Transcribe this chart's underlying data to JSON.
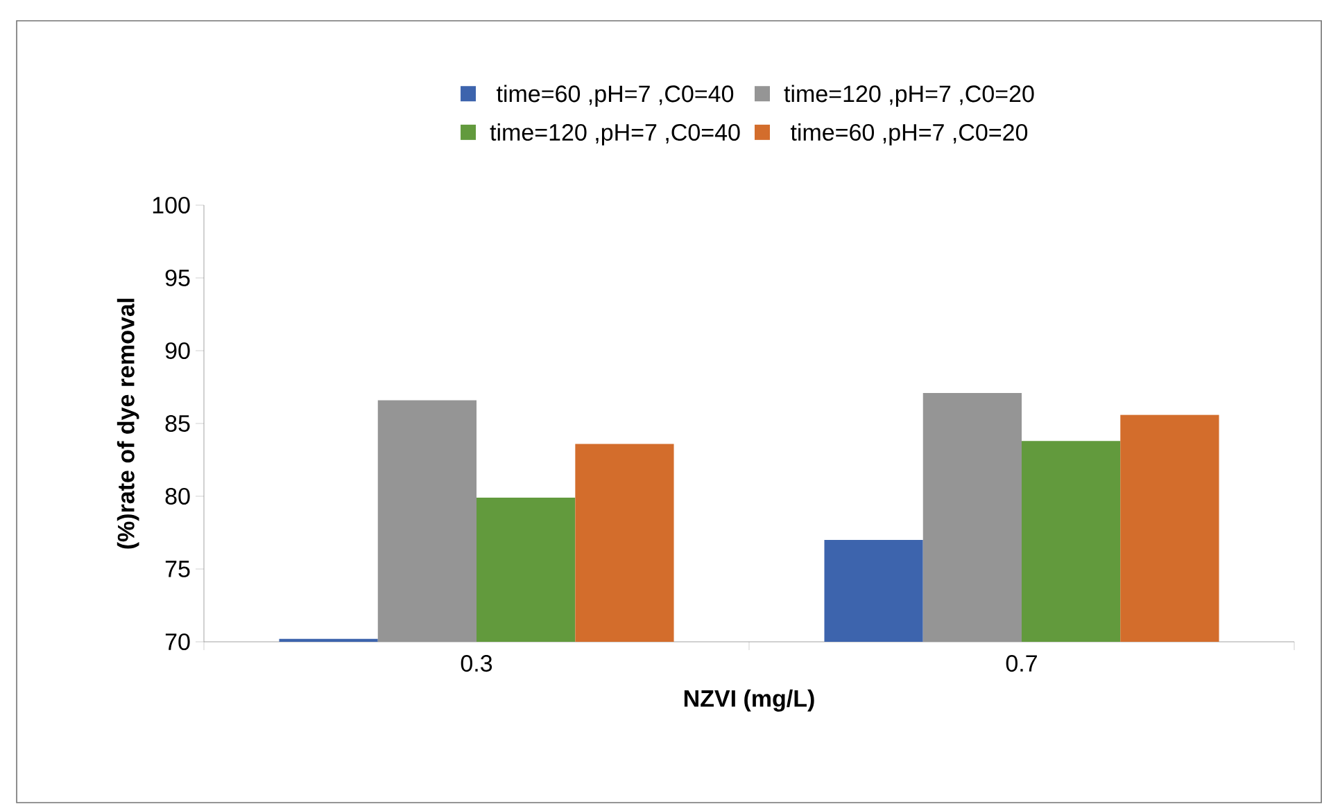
{
  "chart_data": {
    "type": "bar",
    "xlabel": "NZVI (mg/L)",
    "ylabel": "(%)rate of dye removal",
    "categories": [
      "0.3",
      "0.7"
    ],
    "series": [
      {
        "name": "time=60 ,pH=7 ,C0=40",
        "color": "#3d64ad",
        "values": [
          70.2,
          77.0
        ]
      },
      {
        "name": "time=120 ,pH=7 ,C0=20",
        "color": "#959595",
        "values": [
          86.6,
          87.1
        ]
      },
      {
        "name": "time=120 ,pH=7 ,C0=40",
        "color": "#629a3d",
        "values": [
          79.9,
          83.8
        ]
      },
      {
        "name": "time=60 ,pH=7 ,C0=20",
        "color": "#d36d2c",
        "values": [
          83.6,
          85.6
        ]
      }
    ],
    "ylim": [
      70,
      100
    ],
    "yticks": [
      70,
      75,
      80,
      85,
      90,
      95,
      100
    ],
    "grid": false,
    "legend": "top"
  }
}
